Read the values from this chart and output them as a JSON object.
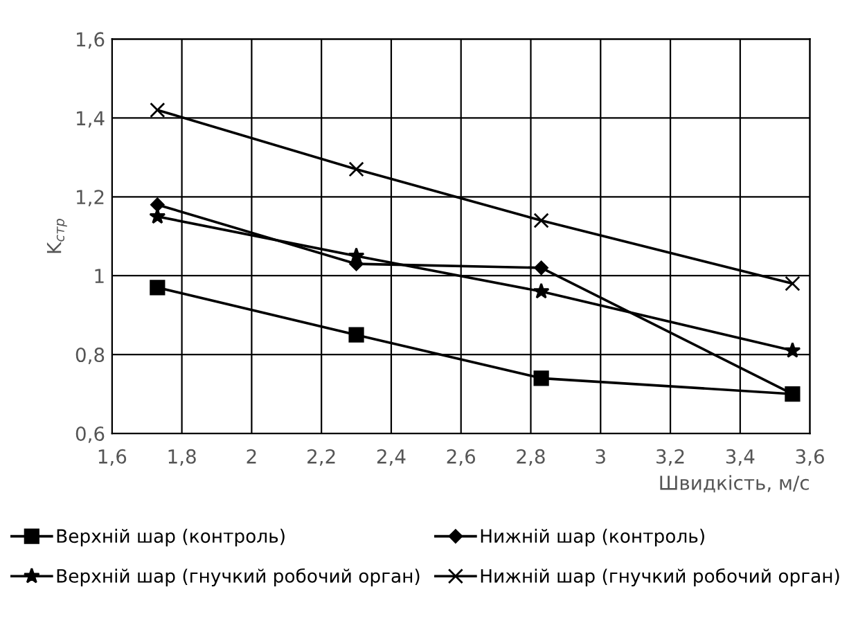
{
  "chart_data": {
    "type": "line",
    "xlabel": "Швидкість, м/с",
    "ylabel": "K$_{стр}$",
    "x": [
      1.73,
      2.3,
      2.83,
      3.55
    ],
    "xlim": [
      1.6,
      3.6
    ],
    "xticks": [
      {
        "value": 1.6,
        "label": "1,6"
      },
      {
        "value": 1.8,
        "label": "1,8"
      },
      2,
      {
        "value": 2.2,
        "label": "2,2"
      },
      {
        "value": 2.4,
        "label": "2,4"
      },
      {
        "value": 2.6,
        "label": "2,6"
      },
      {
        "value": 2.8,
        "label": "2,8"
      },
      3,
      {
        "value": 3.2,
        "label": "3,2"
      },
      {
        "value": 3.4,
        "label": "3,4"
      },
      {
        "value": 3.6,
        "label": "3,6"
      }
    ],
    "ylim": [
      0.6,
      1.6
    ],
    "yticks": [
      {
        "value": 0.6,
        "label": "0,6"
      },
      {
        "value": 0.8,
        "label": "0,8"
      },
      1,
      {
        "value": 1.2,
        "label": "1,2"
      },
      {
        "value": 1.4,
        "label": "1,4"
      },
      {
        "value": 1.6,
        "label": "1,6"
      }
    ],
    "grid": true,
    "legend": "bottom",
    "line_style": "solid",
    "series": [
      {
        "name": "Верхній шар (контроль)",
        "color": "#000000",
        "marker": "square",
        "values": [
          0.97,
          0.85,
          0.74,
          0.7
        ]
      },
      {
        "name": "Нижній шар (контроль)",
        "color": "#000000",
        "marker": "diamond",
        "values": [
          1.18,
          1.03,
          1.02,
          0.7
        ]
      },
      {
        "name": "Верхній шар (гнучкий робочий орган)",
        "color": "#000000",
        "marker": "star",
        "values": [
          1.15,
          1.05,
          0.96,
          0.81
        ]
      },
      {
        "name": "Нижній шар (гнучкий робочий орган)",
        "color": "#000000",
        "marker": "cross",
        "values": [
          1.42,
          1.27,
          1.14,
          0.98
        ]
      }
    ]
  }
}
